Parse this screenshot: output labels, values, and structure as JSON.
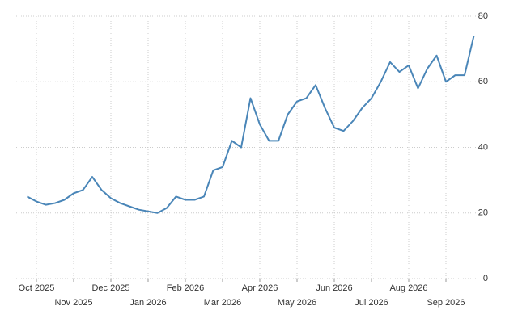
{
  "chart_data": {
    "type": "line",
    "categories": [
      null,
      "Oct 2025",
      null,
      null,
      null,
      "Nov 2025",
      null,
      null,
      null,
      "Dec 2025",
      null,
      null,
      null,
      "Jan 2026",
      null,
      null,
      null,
      "Feb 2026",
      null,
      null,
      null,
      "Mar 2026",
      null,
      null,
      null,
      "Apr 2026",
      null,
      null,
      null,
      "May 2026",
      null,
      null,
      null,
      "Jun 2026",
      null,
      null,
      null,
      "Jul 2026",
      null,
      null,
      null,
      "Aug 2026",
      null,
      null,
      null,
      "Sep 2026",
      null,
      null,
      null
    ],
    "values": [
      25,
      23.5,
      22.5,
      23,
      24,
      26,
      27,
      31,
      27,
      24.5,
      23,
      22,
      21,
      20.5,
      20,
      21.5,
      25,
      24,
      24,
      25,
      33,
      34,
      42,
      40,
      55,
      47,
      42,
      42,
      50,
      54,
      55,
      59,
      52,
      46,
      45,
      48,
      52,
      55,
      60,
      66,
      63,
      65,
      58,
      64,
      68,
      60,
      62,
      62,
      74
    ],
    "color": "#4a86b8",
    "ylim": [
      0,
      80
    ],
    "yticks": [
      0,
      20,
      40,
      60,
      80
    ],
    "grid": true
  }
}
